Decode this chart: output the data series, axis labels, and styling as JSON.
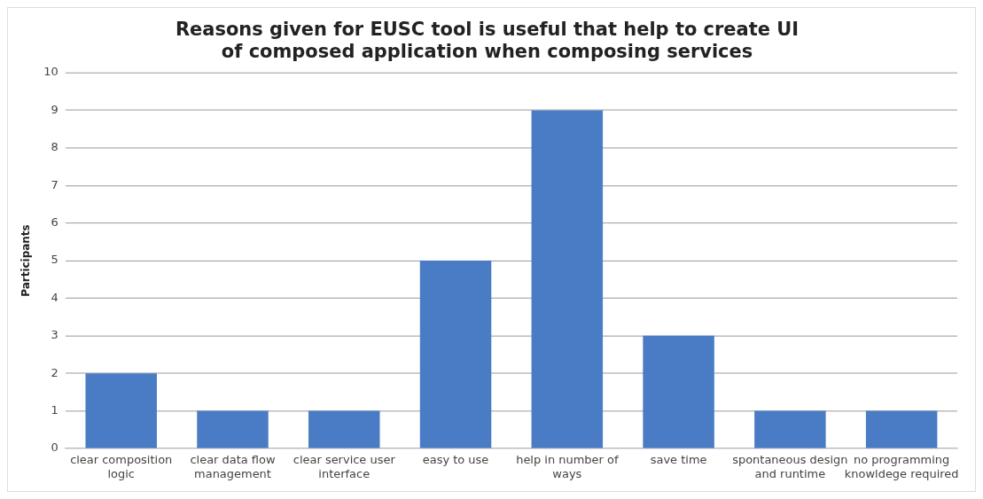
{
  "chart_data": {
    "type": "bar",
    "title": "Reasons given for EUSC tool is useful that help to create UI of composed application when composing services",
    "ylabel": "Participants",
    "categories": [
      "clear composition logic",
      "clear data flow management",
      "clear service user interface",
      "easy to use",
      "help in number of ways",
      "save time",
      "spontaneous design and runtime",
      "no programming knowldege required"
    ],
    "values": [
      2,
      1,
      1,
      5,
      9,
      3,
      1,
      1
    ],
    "color": "#4a7cc6",
    "ylim": [
      0,
      10
    ],
    "yticks": [
      0,
      1,
      2,
      3,
      4,
      5,
      6,
      7,
      8,
      9,
      10
    ],
    "grid": "y"
  }
}
